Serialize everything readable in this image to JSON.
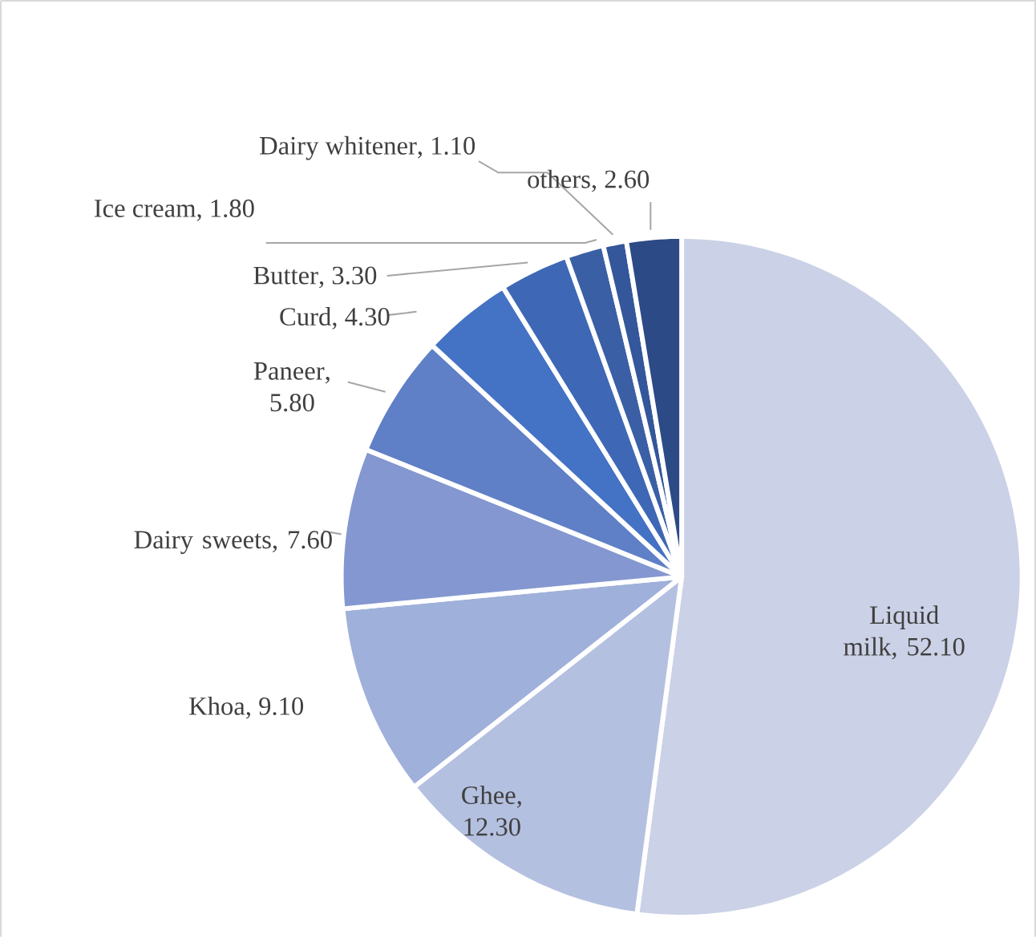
{
  "chart_data": {
    "type": "pie",
    "categories": [
      "Liquid milk",
      "Ghee",
      "Khoa",
      "Dairy sweets",
      "Paneer",
      "Curd",
      "Butter",
      "Ice cream",
      "Dairy whitener",
      "others"
    ],
    "values": [
      52.1,
      12.3,
      9.1,
      7.6,
      5.8,
      4.3,
      3.3,
      1.8,
      1.1,
      2.6
    ],
    "colors": [
      "#cbd1e6",
      "#b4c0e0",
      "#9fb0da",
      "#8497d0",
      "#5f7fc6",
      "#4472c4",
      "#3e68b5",
      "#3a5fa5",
      "#34569a",
      "#2c4a86"
    ],
    "value_labels": [
      ", 52.10",
      ", 12.30",
      ", 9.10",
      ", 7.60",
      ", 5.80",
      ", 4.30",
      ", 3.30",
      ", 1.80",
      ", 1.10",
      ", 2.60"
    ]
  }
}
